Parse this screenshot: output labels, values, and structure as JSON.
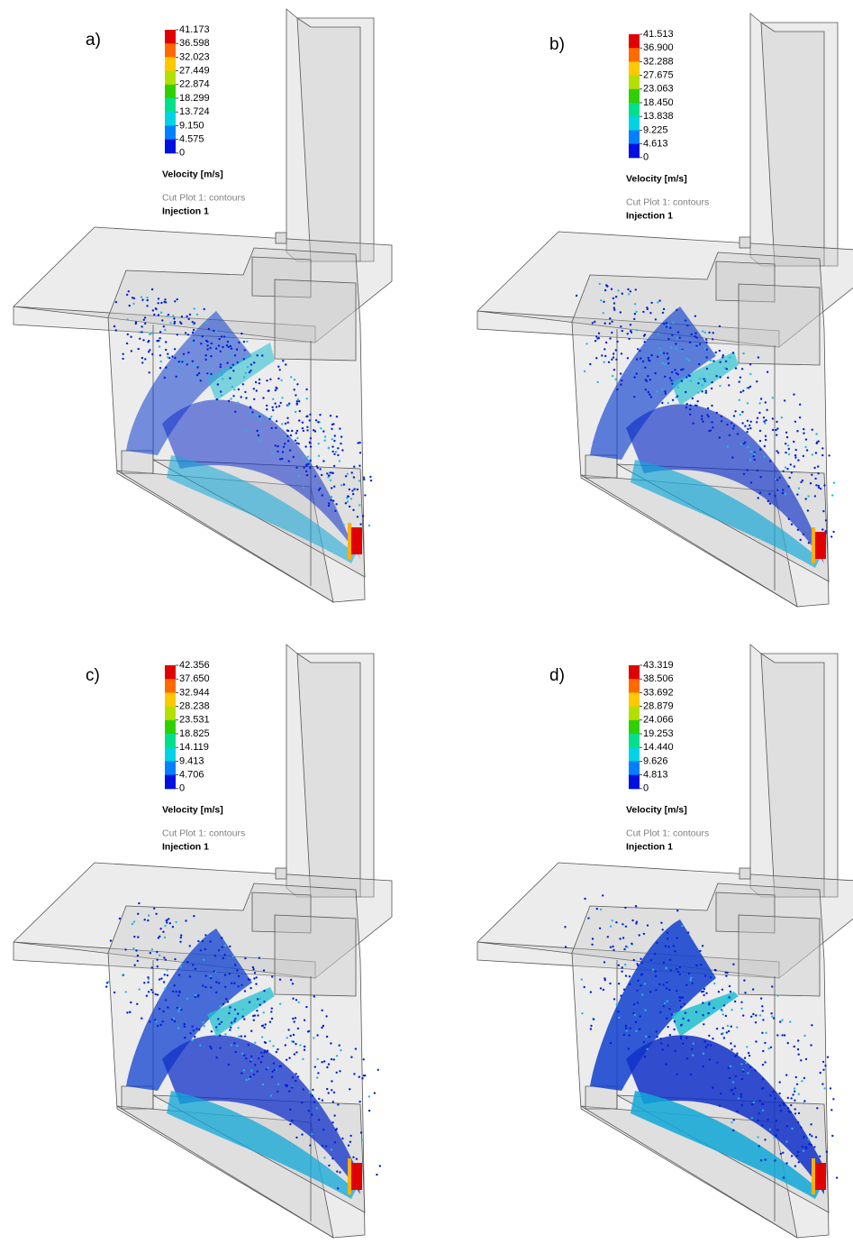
{
  "panels": [
    {
      "label": "a)",
      "legend": {
        "values": [
          "41.173",
          "36.598",
          "32.023",
          "27.449",
          "22.874",
          "18.299",
          "13.724",
          "9.150",
          "4.575",
          "0"
        ],
        "title": "Velocity [m/s]"
      },
      "subtitle": "Cut Plot 1: contours",
      "injection": "Injection 1"
    },
    {
      "label": "b)",
      "legend": {
        "values": [
          "41.513",
          "36.900",
          "32.288",
          "27.675",
          "23.063",
          "18.450",
          "13.838",
          "9.225",
          "4.613",
          "0"
        ],
        "title": "Velocity [m/s]"
      },
      "subtitle": "Cut Plot 1: contours",
      "injection": "Injection 1"
    },
    {
      "label": "c)",
      "legend": {
        "values": [
          "42.356",
          "37.650",
          "32.944",
          "28.238",
          "23.531",
          "18.825",
          "14.119",
          "9.413",
          "4.706",
          "0"
        ],
        "title": "Velocity [m/s]"
      },
      "subtitle": "Cut Plot 1: contours",
      "injection": "Injection 1"
    },
    {
      "label": "d)",
      "legend": {
        "values": [
          "43.319",
          "38.506",
          "33.692",
          "28.879",
          "24.066",
          "19.253",
          "14.440",
          "9.626",
          "4.813",
          "0"
        ],
        "title": "Velocity [m/s]"
      },
      "subtitle": "Cut Plot 1: contours",
      "injection": "Injection 1"
    }
  ]
}
